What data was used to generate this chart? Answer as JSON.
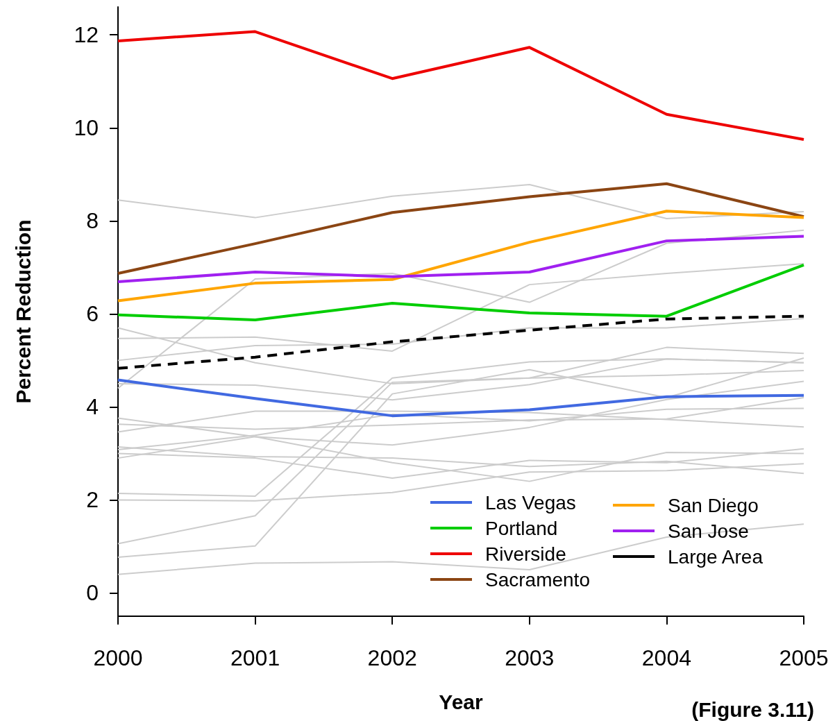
{
  "chart_data": {
    "type": "line",
    "xlabel": "Year",
    "ylabel": "Percent Reduction",
    "annotations": [
      "(Figure 3.11)"
    ],
    "x": [
      2000,
      2001,
      2002,
      2003,
      2004,
      2005
    ],
    "xlim": [
      2000,
      2005
    ],
    "xticks": [
      2000,
      2001,
      2002,
      2003,
      2004,
      2005
    ],
    "ylim": [
      -0.5,
      12.6
    ],
    "yticks": [
      0,
      2,
      4,
      6,
      8,
      10,
      12
    ],
    "grid": false,
    "legend": "bottom right",
    "marker": "none",
    "series": [
      {
        "color": "#cccccc",
        "values": [
          8.45,
          8.07,
          8.53,
          8.78,
          8.05,
          8.2
        ]
      },
      {
        "color": "#cccccc",
        "values": [
          4.4,
          6.75,
          6.87,
          6.25,
          7.52,
          7.8
        ]
      },
      {
        "color": "#cccccc",
        "values": [
          5.47,
          5.5,
          5.2,
          6.63,
          6.87,
          7.08
        ]
      },
      {
        "color": "#cccccc",
        "values": [
          5.0,
          5.32,
          5.35,
          5.7,
          5.7,
          5.9
        ]
      },
      {
        "color": "#cccccc",
        "values": [
          5.7,
          4.95,
          4.5,
          4.62,
          5.28,
          5.15
        ]
      },
      {
        "color": "#cccccc",
        "values": [
          4.5,
          4.47,
          4.15,
          4.48,
          5.03,
          4.95
        ]
      },
      {
        "color": "#cccccc",
        "values": [
          3.46,
          3.91,
          3.91,
          3.88,
          3.73,
          3.57
        ]
      },
      {
        "color": "#cccccc",
        "values": [
          3.76,
          3.36,
          2.8,
          2.4,
          3.02,
          3.0
        ]
      },
      {
        "color": "#cccccc",
        "values": [
          3.63,
          3.52,
          3.61,
          3.72,
          3.74,
          4.2
        ]
      },
      {
        "color": "#cccccc",
        "values": [
          3.08,
          3.39,
          3.84,
          3.7,
          3.95,
          3.97
        ]
      },
      {
        "color": "#cccccc",
        "values": [
          3.14,
          2.93,
          2.9,
          2.72,
          2.83,
          2.57
        ]
      },
      {
        "color": "#cccccc",
        "values": [
          2.9,
          3.36,
          3.18,
          3.56,
          4.16,
          4.55
        ]
      },
      {
        "color": "#cccccc",
        "values": [
          2.14,
          2.08,
          4.62,
          4.97,
          5.03,
          4.95
        ]
      },
      {
        "color": "#cccccc",
        "values": [
          2.0,
          1.98,
          2.16,
          2.6,
          2.63,
          2.78
        ]
      },
      {
        "color": "#cccccc",
        "values": [
          1.06,
          1.66,
          4.53,
          4.62,
          4.68,
          4.78
        ]
      },
      {
        "color": "#cccccc",
        "values": [
          0.77,
          1.01,
          4.28,
          4.8,
          4.2,
          5.05
        ]
      },
      {
        "color": "#cccccc",
        "values": [
          0.4,
          0.64,
          0.67,
          0.5,
          1.2,
          1.48
        ]
      },
      {
        "color": "#cccccc",
        "values": [
          3.0,
          2.9,
          2.47,
          2.85,
          2.8,
          3.1
        ]
      },
      {
        "name": "Las Vegas",
        "color": "#4169e1",
        "values": [
          4.58,
          4.18,
          3.81,
          3.94,
          4.22,
          4.25
        ]
      },
      {
        "name": "Portland",
        "color": "#00cd00",
        "values": [
          5.98,
          5.87,
          6.23,
          6.02,
          5.95,
          7.05
        ]
      },
      {
        "name": "Riverside",
        "color": "#ee0000",
        "values": [
          11.87,
          12.07,
          11.06,
          11.73,
          10.29,
          9.75
        ]
      },
      {
        "name": "Sacramento",
        "color": "#8b4513",
        "values": [
          6.87,
          7.51,
          8.18,
          8.52,
          8.8,
          8.09
        ]
      },
      {
        "name": "San Diego",
        "color": "#ffa500",
        "values": [
          6.28,
          6.66,
          6.74,
          7.54,
          8.21,
          8.07
        ]
      },
      {
        "name": "San Jose",
        "color": "#a020f0",
        "values": [
          6.69,
          6.9,
          6.8,
          6.9,
          7.57,
          7.67
        ]
      },
      {
        "name": "Large Area",
        "color": "#000000",
        "line_style": "dashed",
        "values": [
          4.83,
          5.07,
          5.4,
          5.65,
          5.89,
          5.95
        ]
      }
    ]
  }
}
